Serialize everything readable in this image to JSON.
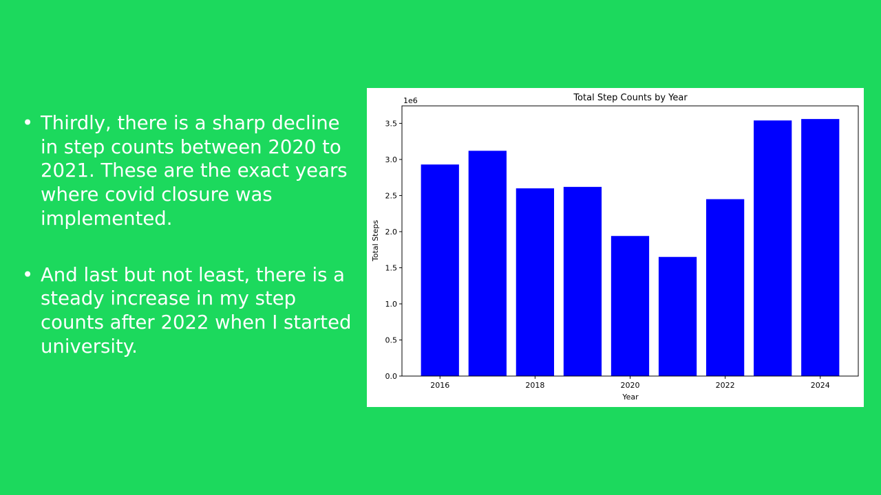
{
  "slide": {
    "bullets": [
      {
        "text": "Thirdly, there is a sharp decline in step counts between 2020 to 2021. These are the exact years where covid closure was implemented."
      },
      {
        "text": "And last but not least, there is a steady increase in my step counts after 2022 when I started university."
      }
    ],
    "bullet_glyph": "•",
    "background_color": "#1cd95d"
  },
  "chart_data": {
    "type": "bar",
    "title": "Total Step Counts by Year",
    "xlabel": "Year",
    "ylabel": "Total Steps",
    "y_offset_label": "1e6",
    "categories": [
      2016,
      2017,
      2018,
      2019,
      2020,
      2021,
      2022,
      2023,
      2024
    ],
    "values": [
      2930000,
      3120000,
      2600000,
      2620000,
      1940000,
      1650000,
      2450000,
      3540000,
      3560000
    ],
    "x_ticks": [
      "2016",
      "2018",
      "2020",
      "2022",
      "2024"
    ],
    "y_ticks": [
      "0.0",
      "0.5",
      "1.0",
      "1.5",
      "2.0",
      "2.5",
      "3.0",
      "3.5"
    ],
    "ylim": [
      0,
      3.5
    ],
    "bar_color": "#0000ff",
    "grid": false,
    "legend": false
  }
}
